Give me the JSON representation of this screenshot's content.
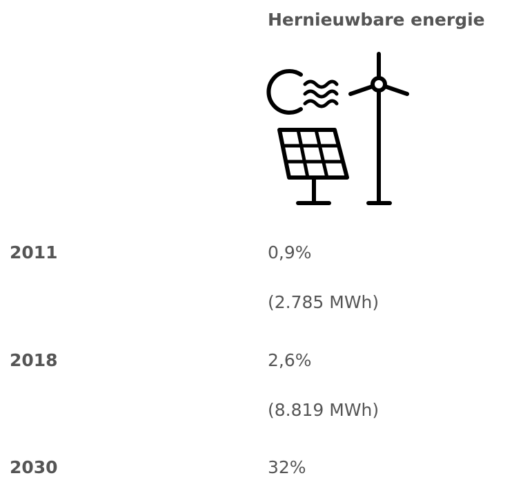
{
  "header": {
    "title": "Hernieuwbare energie"
  },
  "table": {
    "rows": [
      [
        "2011",
        "0,9%",
        "(2.785 MWh)"
      ],
      [
        "2018",
        "2,6%",
        "(8.819 MWh)"
      ],
      [
        "2030",
        "32%"
      ]
    ]
  }
}
